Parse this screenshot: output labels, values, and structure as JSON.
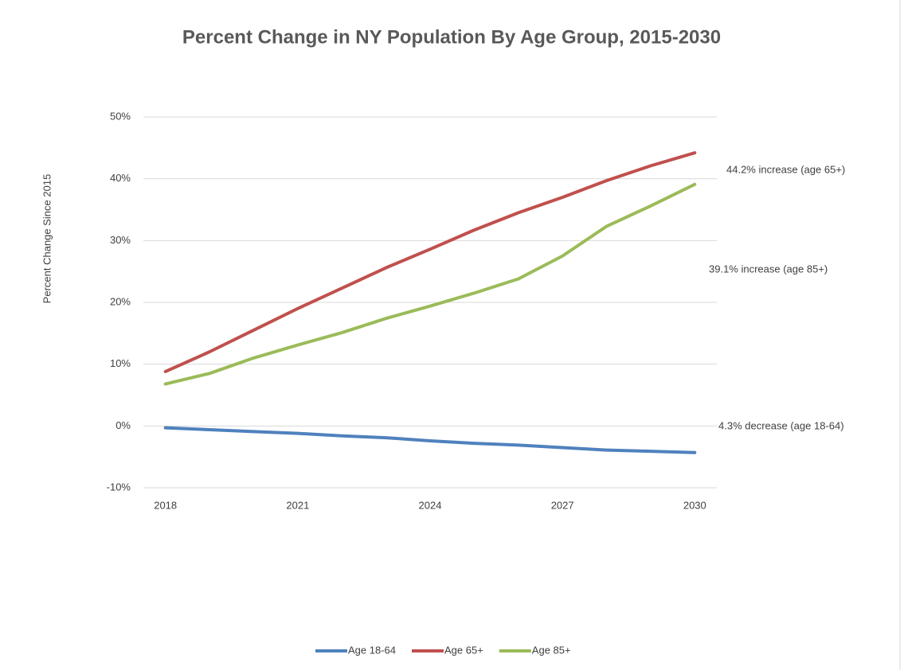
{
  "chart_data": {
    "type": "line",
    "title": "Percent Change in NY Population By Age Group, 2015-2030",
    "y_label": "Percent Change Since 2015",
    "x": [
      2018,
      2019,
      2020,
      2021,
      2022,
      2023,
      2024,
      2025,
      2026,
      2027,
      2028,
      2029,
      2030
    ],
    "series": [
      {
        "name": "Age 18-64",
        "color": "#4f81bd",
        "values": [
          -0.3,
          -0.6,
          -0.9,
          -1.2,
          -1.6,
          -1.9,
          -2.4,
          -2.8,
          -3.1,
          -3.5,
          -3.9,
          -4.1,
          -4.3
        ]
      },
      {
        "name": "Age 65+",
        "color": "#c0504d",
        "values": [
          8.8,
          12.0,
          15.5,
          19.0,
          22.3,
          25.6,
          28.6,
          31.7,
          34.5,
          37.0,
          39.7,
          42.1,
          44.2
        ]
      },
      {
        "name": "Age 85+",
        "color": "#9bbb59",
        "values": [
          6.8,
          8.5,
          11.0,
          13.1,
          15.1,
          17.4,
          19.4,
          21.5,
          23.8,
          27.5,
          32.3,
          35.6,
          39.1
        ]
      }
    ],
    "annotations": [
      "44.2% increase (age 65+)",
      "39.1% increase (age 85+)",
      "4.3% decrease (age 18-64)"
    ],
    "xlim": [
      2017.5,
      2030.5
    ],
    "xticks": [
      2018,
      2021,
      2024,
      2027,
      2030
    ],
    "ylim": [
      -10,
      50
    ],
    "yticks": [
      {
        "value": -10,
        "label": "-10%"
      },
      {
        "value": 0,
        "label": "0%"
      },
      {
        "value": 10,
        "label": "10%"
      },
      {
        "value": 20,
        "label": "20%"
      },
      {
        "value": 30,
        "label": "30%"
      },
      {
        "value": 40,
        "label": "40%"
      },
      {
        "value": 50,
        "label": "50%"
      }
    ],
    "grid": true,
    "legend": "bottom"
  }
}
